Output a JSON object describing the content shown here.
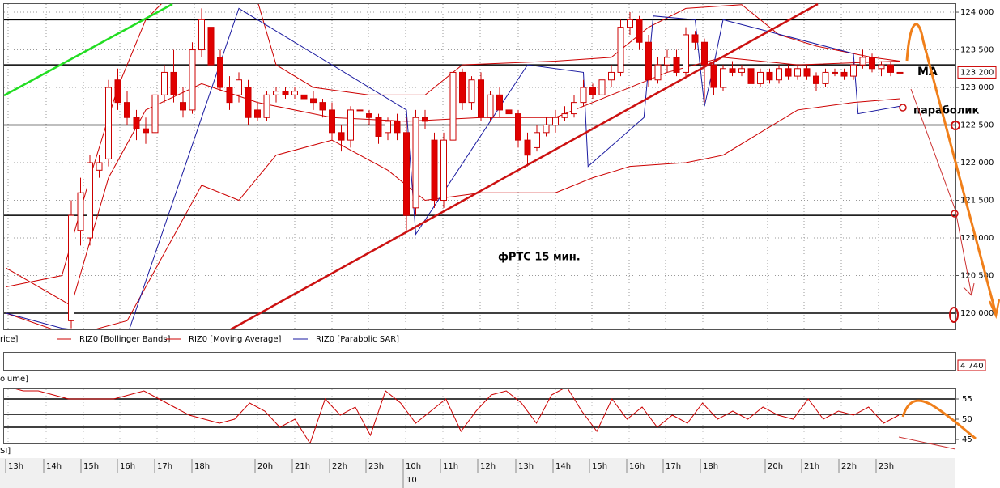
{
  "chart_data": {
    "type": "candlestick",
    "annotation": "фРТС   15 мин.",
    "ma_note": "МА",
    "sar_note": "параболик",
    "legend": [
      "rice]",
      "RIZ0 [Bollinger Bands]",
      "RIZ0 [Moving Average]",
      "RIZ0 [Parabolic SAR]"
    ],
    "legend_colors": [
      null,
      "#cc0000",
      "#cc0000",
      "#1a1aa0"
    ],
    "up_color": "#ffffff",
    "down_color": "#e00000",
    "edge_color": "#cc0000",
    "ylim": [
      119785,
      124108
    ],
    "yticks": [
      {
        "value": 120000,
        "label": "120 000"
      },
      {
        "value": 120500,
        "label": "120 500"
      },
      {
        "value": 121000,
        "label": "121 000"
      },
      {
        "value": 121500,
        "label": "121 500"
      },
      {
        "value": 122000,
        "label": "122 000"
      },
      {
        "value": 122500,
        "label": "122 500"
      },
      {
        "value": 123000,
        "label": "123 000"
      },
      {
        "value": 123500,
        "label": "123 500"
      },
      {
        "value": 124000,
        "label": "124 000"
      }
    ],
    "grid": true,
    "last_price": {
      "value": 123200,
      "label": "123 200"
    },
    "levels": [
      123900,
      123300,
      122500,
      121300,
      120000
    ],
    "candles": [
      [
        119900,
        121500,
        119800,
        121300
      ],
      [
        121100,
        121800,
        120900,
        121600
      ],
      [
        121000,
        122100,
        120900,
        122000
      ],
      [
        121900,
        122100,
        121800,
        122000
      ],
      [
        122050,
        123100,
        121950,
        123000
      ],
      [
        123100,
        123250,
        122700,
        122800
      ],
      [
        122800,
        122950,
        122500,
        122600
      ],
      [
        122600,
        122700,
        122300,
        122450
      ],
      [
        122450,
        122600,
        122250,
        122400
      ],
      [
        122400,
        123000,
        122350,
        122900
      ],
      [
        122900,
        123300,
        122800,
        123200
      ],
      [
        123200,
        123500,
        122800,
        122900
      ],
      [
        122800,
        123000,
        122600,
        122700
      ],
      [
        122700,
        123600,
        122650,
        123500
      ],
      [
        123500,
        124050,
        123400,
        123900
      ],
      [
        123800,
        124000,
        123200,
        123300
      ],
      [
        123400,
        123500,
        122950,
        123000
      ],
      [
        123000,
        123150,
        122700,
        122800
      ],
      [
        122900,
        123200,
        122800,
        123100
      ],
      [
        123000,
        123100,
        122500,
        122600
      ],
      [
        122700,
        122800,
        122550,
        122600
      ],
      [
        122600,
        122950,
        122550,
        122900
      ],
      [
        122900,
        123000,
        122800,
        122950
      ],
      [
        122950,
        123000,
        122850,
        122900
      ],
      [
        122900,
        123000,
        122850,
        122950
      ],
      [
        122900,
        122950,
        122800,
        122850
      ],
      [
        122850,
        122950,
        122700,
        122800
      ],
      [
        122800,
        122850,
        122600,
        122700
      ],
      [
        122700,
        122800,
        122300,
        122400
      ],
      [
        122400,
        122500,
        122150,
        122300
      ],
      [
        122300,
        122750,
        122200,
        122700
      ],
      [
        122700,
        122800,
        122600,
        122700
      ],
      [
        122650,
        122700,
        122500,
        122600
      ],
      [
        122600,
        122650,
        122250,
        122350
      ],
      [
        122400,
        122600,
        122300,
        122550
      ],
      [
        122550,
        122650,
        122300,
        122400
      ],
      [
        122400,
        122600,
        121100,
        121300
      ],
      [
        121400,
        122700,
        121300,
        122600
      ],
      [
        122600,
        122700,
        122450,
        122550
      ],
      [
        122300,
        122400,
        121400,
        121500
      ],
      [
        121500,
        122400,
        121400,
        122300
      ],
      [
        122300,
        123300,
        122200,
        123200
      ],
      [
        123200,
        123250,
        122700,
        122800
      ],
      [
        122800,
        123150,
        122700,
        123100
      ],
      [
        123100,
        123200,
        122550,
        122600
      ],
      [
        122600,
        122950,
        122550,
        122900
      ],
      [
        122900,
        123000,
        122600,
        122700
      ],
      [
        122700,
        122800,
        122300,
        122650
      ],
      [
        122650,
        122700,
        122200,
        122300
      ],
      [
        122300,
        122400,
        121950,
        122100
      ],
      [
        122200,
        122500,
        122150,
        122400
      ],
      [
        122400,
        122600,
        122350,
        122500
      ],
      [
        122500,
        122700,
        122400,
        122600
      ],
      [
        122600,
        122750,
        122550,
        122650
      ],
      [
        122650,
        122900,
        122600,
        122800
      ],
      [
        122800,
        123100,
        122750,
        123000
      ],
      [
        123000,
        123050,
        122850,
        122900
      ],
      [
        122900,
        123200,
        122850,
        123100
      ],
      [
        123100,
        123300,
        123000,
        123200
      ],
      [
        123200,
        123900,
        123150,
        123800
      ],
      [
        123800,
        124000,
        123700,
        123900
      ],
      [
        123900,
        123950,
        123500,
        123600
      ],
      [
        123600,
        123700,
        123000,
        123100
      ],
      [
        123100,
        123400,
        123050,
        123300
      ],
      [
        123300,
        123500,
        123200,
        123400
      ],
      [
        123400,
        123500,
        123150,
        123200
      ],
      [
        123200,
        123800,
        123150,
        123700
      ],
      [
        123700,
        123750,
        123500,
        123600
      ],
      [
        123600,
        123650,
        122800,
        123300
      ],
      [
        123300,
        123350,
        122900,
        123000
      ],
      [
        123000,
        123300,
        122950,
        123250
      ],
      [
        123250,
        123350,
        123150,
        123200
      ],
      [
        123200,
        123300,
        123150,
        123250
      ],
      [
        123250,
        123300,
        122950,
        123050
      ],
      [
        123050,
        123250,
        123000,
        123200
      ],
      [
        123200,
        123250,
        123050,
        123100
      ],
      [
        123100,
        123300,
        123050,
        123250
      ],
      [
        123250,
        123300,
        123100,
        123150
      ],
      [
        123150,
        123300,
        123100,
        123250
      ],
      [
        123250,
        123300,
        123100,
        123150
      ],
      [
        123150,
        123200,
        122950,
        123050
      ],
      [
        123050,
        123250,
        123000,
        123200
      ],
      [
        123200,
        123250,
        123150,
        123200
      ],
      [
        123200,
        123250,
        123100,
        123150
      ],
      [
        123150,
        123350,
        123100,
        123300
      ],
      [
        123300,
        123500,
        123250,
        123400
      ],
      [
        123400,
        123450,
        123200,
        123250
      ],
      [
        123250,
        123350,
        123150,
        123300
      ],
      [
        123300,
        123350,
        123150,
        123200
      ],
      [
        123200,
        123300,
        123150,
        123200
      ]
    ],
    "bollinger_upper": [
      [
        -7,
        120350
      ],
      [
        -1,
        120500
      ],
      [
        2,
        121800
      ],
      [
        5,
        123000
      ],
      [
        8,
        123900
      ],
      [
        10,
        124150
      ],
      [
        20,
        124150
      ],
      [
        22,
        123300
      ],
      [
        26,
        123000
      ],
      [
        32,
        122900
      ],
      [
        38,
        122900
      ],
      [
        42,
        123300
      ],
      [
        52,
        123350
      ],
      [
        58,
        123400
      ],
      [
        62,
        123800
      ],
      [
        66,
        124050
      ],
      [
        72,
        124100
      ],
      [
        76,
        123700
      ],
      [
        80,
        123550
      ],
      [
        86,
        123400
      ],
      [
        89,
        123350
      ]
    ],
    "bollinger_lower": [
      [
        -7,
        120000
      ],
      [
        0,
        119700
      ],
      [
        6,
        119900
      ],
      [
        10,
        120800
      ],
      [
        14,
        121700
      ],
      [
        18,
        121500
      ],
      [
        22,
        122100
      ],
      [
        28,
        122300
      ],
      [
        34,
        121900
      ],
      [
        38,
        121500
      ],
      [
        44,
        121600
      ],
      [
        52,
        121600
      ],
      [
        56,
        121800
      ],
      [
        60,
        121950
      ],
      [
        66,
        122000
      ],
      [
        70,
        122100
      ],
      [
        74,
        122400
      ],
      [
        78,
        122700
      ],
      [
        84,
        122800
      ],
      [
        89,
        122850
      ]
    ],
    "moving_average": [
      [
        -7,
        120600
      ],
      [
        0,
        120100
      ],
      [
        4,
        121800
      ],
      [
        8,
        122700
      ],
      [
        14,
        123050
      ],
      [
        20,
        122800
      ],
      [
        28,
        122600
      ],
      [
        36,
        122550
      ],
      [
        44,
        122600
      ],
      [
        52,
        122600
      ],
      [
        58,
        122900
      ],
      [
        64,
        123200
      ],
      [
        70,
        123400
      ],
      [
        78,
        123300
      ],
      [
        89,
        123350
      ]
    ],
    "parabolic_sar": [
      [
        -7,
        120000
      ],
      [
        -1,
        119800
      ],
      [
        6,
        119700
      ],
      [
        18,
        124050
      ],
      [
        36,
        122700
      ],
      [
        37,
        121050
      ],
      [
        49,
        123300
      ],
      [
        55,
        123200
      ],
      [
        55.5,
        121950
      ],
      [
        61.5,
        122600
      ],
      [
        62.5,
        123950
      ],
      [
        67,
        123900
      ],
      [
        68,
        122750
      ],
      [
        69,
        123300
      ],
      [
        70,
        123900
      ],
      [
        84,
        123450
      ],
      [
        84.5,
        122650
      ],
      [
        89,
        122750
      ]
    ],
    "volume_label": "olume]",
    "volume_last": {
      "value": 4740,
      "label": "4 740"
    },
    "rsi_label": "SI]",
    "rsi_ylim": [
      44,
      57.4
    ],
    "rsi_yticks": [
      45,
      50,
      55
    ],
    "rsi_levels": [
      55,
      51.2,
      48
    ],
    "rsi": [
      58,
      57,
      57,
      56,
      55,
      55,
      55,
      55,
      56,
      57,
      55,
      53,
      51,
      50,
      49,
      50,
      54,
      52,
      48,
      50,
      44,
      55,
      51,
      53,
      46,
      57,
      54,
      49,
      52,
      55,
      47,
      52,
      56,
      57,
      54,
      49,
      56,
      58,
      52,
      47,
      55,
      50,
      53,
      48,
      51,
      49,
      54,
      50,
      52,
      50,
      53,
      51,
      50,
      55,
      50,
      52,
      51,
      53,
      49,
      51
    ],
    "time_labels": [
      "13h",
      "14h",
      "15h",
      "16h",
      "17h",
      "18h",
      "20h",
      "21h",
      "22h",
      "23h",
      "10h",
      "11h",
      "12h",
      "13h",
      "14h",
      "15h",
      "16h",
      "17h",
      "18h",
      "20h",
      "21h",
      "22h",
      "23h"
    ],
    "date_label": "10"
  }
}
